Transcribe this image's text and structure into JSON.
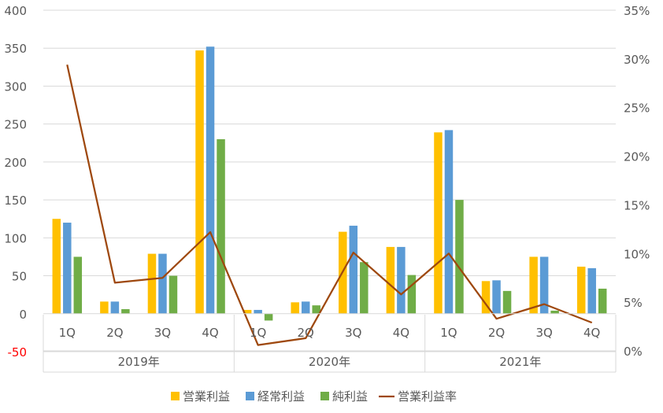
{
  "chart_data": {
    "type": "bar",
    "title": "",
    "categories": [
      "1Q",
      "2Q",
      "3Q",
      "4Q",
      "1Q",
      "2Q",
      "3Q",
      "4Q",
      "1Q",
      "2Q",
      "3Q",
      "4Q"
    ],
    "groups": [
      {
        "label": "2019年",
        "count": 4
      },
      {
        "label": "2020年",
        "count": 4
      },
      {
        "label": "2021年",
        "count": 4
      }
    ],
    "series": [
      {
        "name": "営業利益",
        "type": "bar",
        "axis": "left",
        "color": "#FFC000",
        "values": [
          125,
          16,
          79,
          347,
          5,
          15,
          108,
          88,
          239,
          43,
          75,
          62
        ]
      },
      {
        "name": "経常利益",
        "type": "bar",
        "axis": "left",
        "color": "#5B9BD5",
        "values": [
          120,
          16,
          79,
          352,
          5,
          16,
          116,
          88,
          242,
          44,
          75,
          60
        ]
      },
      {
        "name": "純利益",
        "type": "bar",
        "axis": "left",
        "color": "#70AD47",
        "values": [
          75,
          6,
          50,
          230,
          -9,
          11,
          68,
          51,
          150,
          30,
          4,
          33
        ]
      },
      {
        "name": "営業利益率",
        "type": "line",
        "axis": "right",
        "color": "#9E480E",
        "values": [
          29.4,
          7.0,
          7.5,
          12.2,
          0.6,
          1.3,
          10.1,
          5.8,
          10.0,
          3.3,
          4.8,
          2.9
        ]
      }
    ],
    "y_left": {
      "min": -50,
      "max": 400,
      "ticks": [
        {
          "value": 400,
          "label": "400"
        },
        {
          "value": 350,
          "label": "350"
        },
        {
          "value": 300,
          "label": "300"
        },
        {
          "value": 250,
          "label": "250"
        },
        {
          "value": 200,
          "label": "200"
        },
        {
          "value": 150,
          "label": "150"
        },
        {
          "value": 100,
          "label": "100"
        },
        {
          "value": 50,
          "label": "50"
        },
        {
          "value": 0,
          "label": "0"
        },
        {
          "value": -50,
          "label": "-50"
        }
      ],
      "negative_label_color": "#FF0000"
    },
    "y_right": {
      "min": 0,
      "max": 35,
      "ticks": [
        {
          "value": 35,
          "label": "35%"
        },
        {
          "value": 30,
          "label": "30%"
        },
        {
          "value": 25,
          "label": "25%"
        },
        {
          "value": 20,
          "label": "20%"
        },
        {
          "value": 15,
          "label": "15%"
        },
        {
          "value": 10,
          "label": "10%"
        },
        {
          "value": 5,
          "label": "5%"
        },
        {
          "value": 0,
          "label": "0%"
        }
      ]
    },
    "grid": true,
    "legend": "bottom"
  }
}
